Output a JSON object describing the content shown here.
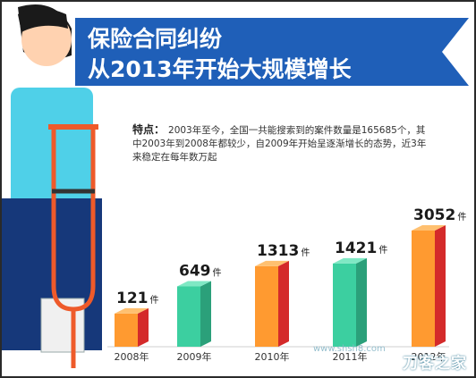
{
  "chart_data": {
    "type": "bar",
    "title": "保险合同纠纷",
    "subtitle": "从2013年开始大规模增长",
    "note_label": "特点：",
    "note": "2003年至今，全国一共能搜索到的案件数量是165685个，其中2003年到2008年都较少，自2009年开始呈逐渐增长的态势，近3年来稳定在每年数万起",
    "unit": "件",
    "categories": [
      "2008年",
      "2009年",
      "2010年",
      "2011年",
      "2012年"
    ],
    "values": [
      121,
      649,
      1313,
      1421,
      3052
    ],
    "value_labels": [
      "121",
      "649",
      "1313",
      "1421",
      "3052"
    ],
    "colors": {
      "front": [
        "#ff9a30",
        "#3ccfa0",
        "#ff9a30",
        "#3ccfa0",
        "#ff9a30"
      ],
      "side": [
        "#d42a2a",
        "#2ba07a",
        "#d42a2a",
        "#2ba07a",
        "#d42a2a"
      ],
      "top": [
        "#ffc070",
        "#7fe8c4",
        "#ffc070",
        "#7fe8c4",
        "#ffc070"
      ],
      "banner": "#1f5fb8"
    }
  },
  "watermark": {
    "site": "www.shsh8.com",
    "logo": "刀客之家"
  }
}
